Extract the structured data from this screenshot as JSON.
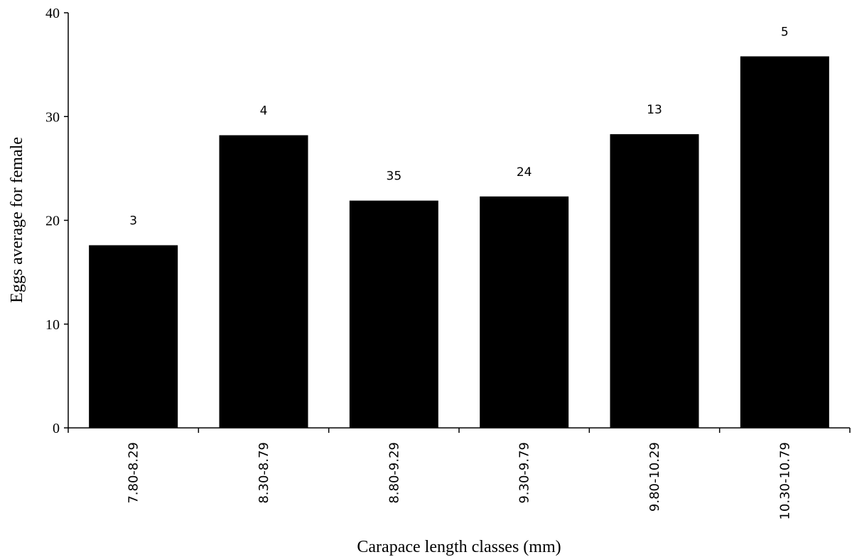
{
  "chart_data": {
    "type": "bar",
    "categories": [
      "7.80-8.29",
      "8.30-8.79",
      "8.80-9.29",
      "9.30-9.79",
      "9.80-10.29",
      "10.30-10.79"
    ],
    "values": [
      17.6,
      28.2,
      21.9,
      22.3,
      28.3,
      35.8
    ],
    "data_labels": [
      "3",
      "4",
      "35",
      "24",
      "13",
      "5"
    ],
    "xlabel": "Carapace length classes (mm)",
    "ylabel": "Eggs average for  female",
    "ylim": [
      0,
      40
    ],
    "yticks": [
      0,
      10,
      20,
      30,
      40
    ],
    "bar_color": "#000000",
    "grid": false,
    "legend": "none"
  }
}
